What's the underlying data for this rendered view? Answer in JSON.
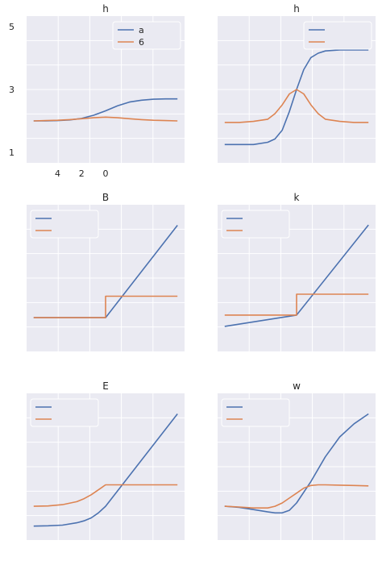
{
  "colors": {
    "background": "#eaeaf2",
    "grid": "#ffffff",
    "series1": "#4c72b0",
    "series2": "#dd8452",
    "legend_bg": "#eaeaf2",
    "legend_border": "#ffffff"
  },
  "chart_data": [
    {
      "type": "line",
      "title": "h",
      "xlim": [
        -6,
        6
      ],
      "ylim": [
        0.9,
        5.1
      ],
      "ylabel_ticks": [
        "1",
        "3",
        "5"
      ],
      "yticks": [
        1,
        3,
        5
      ],
      "xticks": [
        -4,
        -2,
        0
      ],
      "xtick_labels": [
        "4",
        "2",
        "0"
      ],
      "legend": [
        "a",
        "6"
      ],
      "legend_position": "top-right",
      "grid": true,
      "series": [
        {
          "name": "a",
          "x": [
            -6,
            -5,
            -4,
            -3,
            -2,
            -1,
            0,
            1,
            2,
            3,
            4,
            5,
            6
          ],
          "y": [
            2.0,
            2.0,
            2.01,
            2.03,
            2.08,
            2.18,
            2.32,
            2.48,
            2.6,
            2.66,
            2.69,
            2.7,
            2.7
          ]
        },
        {
          "name": "6",
          "x": [
            -6,
            -5,
            -4,
            -3,
            -2,
            -1,
            0,
            1,
            2,
            3,
            4,
            5,
            6
          ],
          "y": [
            2.0,
            2.01,
            2.02,
            2.04,
            2.07,
            2.1,
            2.12,
            2.1,
            2.07,
            2.04,
            2.02,
            2.01,
            2.0
          ]
        }
      ]
    },
    {
      "type": "line",
      "title": "h",
      "xlim": [
        -5,
        5
      ],
      "ylim": [
        -0.1,
        1.1
      ],
      "legend": [
        "",
        ""
      ],
      "legend_position": "top-right",
      "grid": true,
      "series": [
        {
          "x": [
            -5,
            -4,
            -3,
            -2,
            -1.5,
            -1,
            -0.5,
            0,
            0.5,
            1,
            1.5,
            2,
            3,
            4,
            5
          ],
          "y": [
            0.0,
            0.0,
            0.0,
            0.02,
            0.05,
            0.13,
            0.3,
            0.5,
            0.68,
            0.79,
            0.83,
            0.85,
            0.86,
            0.86,
            0.86
          ]
        },
        {
          "x": [
            -5,
            -4,
            -3,
            -2,
            -1.5,
            -1,
            -0.5,
            0,
            0.5,
            1,
            1.5,
            2,
            3,
            4,
            5
          ],
          "y": [
            0.2,
            0.2,
            0.21,
            0.23,
            0.28,
            0.36,
            0.46,
            0.5,
            0.46,
            0.36,
            0.28,
            0.23,
            0.21,
            0.2,
            0.2
          ]
        }
      ]
    },
    {
      "type": "line",
      "title": "B",
      "xlim": [
        -5,
        5
      ],
      "ylim": [
        -0.8,
        3.2
      ],
      "legend": [
        "",
        ""
      ],
      "legend_position": "top-left",
      "grid": true,
      "series": [
        {
          "x": [
            -5,
            0,
            5
          ],
          "y": [
            0,
            0,
            2.8
          ]
        },
        {
          "x": [
            -5,
            0,
            0,
            5
          ],
          "y": [
            0,
            0,
            0.65,
            0.65
          ]
        }
      ]
    },
    {
      "type": "line",
      "title": "k",
      "xlim": [
        -5,
        5
      ],
      "ylim": [
        -0.9,
        3.2
      ],
      "legend": [
        "",
        ""
      ],
      "legend_position": "top-left",
      "grid": true,
      "series": [
        {
          "x": [
            -5,
            0,
            5
          ],
          "y": [
            -0.35,
            0,
            2.8
          ]
        },
        {
          "x": [
            -5,
            0,
            0,
            5
          ],
          "y": [
            0,
            0,
            0.65,
            0.65
          ]
        }
      ]
    },
    {
      "type": "line",
      "title": "E",
      "xlim": [
        -5,
        5
      ],
      "ylim": [
        -0.8,
        3.2
      ],
      "legend": [
        "",
        ""
      ],
      "legend_position": "top-left",
      "grid": true,
      "series": [
        {
          "x": [
            -5,
            -4,
            -3,
            -2,
            -1.5,
            -1,
            -0.5,
            0,
            5
          ],
          "y": [
            -0.6,
            -0.59,
            -0.57,
            -0.5,
            -0.44,
            -0.35,
            -0.2,
            0.0,
            2.8
          ]
        },
        {
          "x": [
            -5,
            -4,
            -3,
            -2,
            -1.5,
            -1,
            -0.5,
            0,
            5
          ],
          "y": [
            0.0,
            0.01,
            0.05,
            0.14,
            0.23,
            0.35,
            0.5,
            0.65,
            0.65
          ]
        }
      ]
    },
    {
      "type": "line",
      "title": "w",
      "xlim": [
        -5,
        5
      ],
      "ylim": [
        -0.8,
        3.2
      ],
      "legend": [
        "",
        ""
      ],
      "legend_position": "top-left",
      "grid": true,
      "series": [
        {
          "x": [
            -5,
            -4,
            -3,
            -2,
            -1.5,
            -1,
            -0.5,
            0,
            1,
            2,
            3,
            4,
            5
          ],
          "y": [
            0.0,
            -0.03,
            -0.1,
            -0.17,
            -0.2,
            -0.2,
            -0.12,
            0.1,
            0.75,
            1.5,
            2.1,
            2.5,
            2.8
          ]
        },
        {
          "x": [
            -5,
            -4,
            -3,
            -2,
            -1.5,
            -1,
            -0.5,
            0,
            0.5,
            1,
            1.5,
            2,
            3,
            4,
            5
          ],
          "y": [
            0.0,
            -0.02,
            -0.05,
            -0.05,
            0.0,
            0.1,
            0.25,
            0.4,
            0.55,
            0.63,
            0.65,
            0.65,
            0.64,
            0.63,
            0.62
          ]
        }
      ]
    }
  ]
}
